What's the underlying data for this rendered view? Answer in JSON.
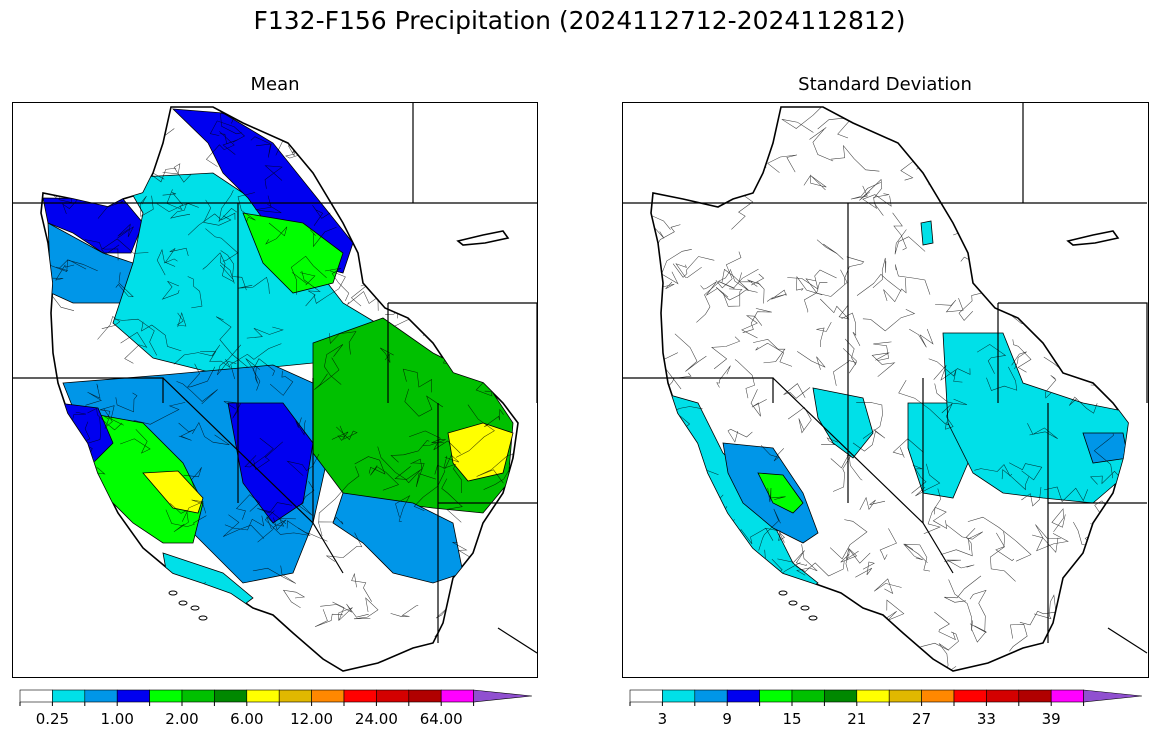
{
  "figure": {
    "title": "F132-F156 Precipitation (2024112712-2024112812)"
  },
  "palette": [
    "#ffffff",
    "#00e0e8",
    "#0096e8",
    "#0000f0",
    "#00ff00",
    "#00c000",
    "#008800",
    "#ffff00",
    "#e0b800",
    "#ff8800",
    "#ff0000",
    "#d40000",
    "#b00000",
    "#ff00ff",
    "#9050d0"
  ],
  "panels": [
    {
      "title": "Mean",
      "colorbar_labels": [
        "0.25",
        "1.00",
        "2.00",
        "6.00",
        "12.00",
        "24.00",
        "64.00"
      ],
      "regions": [
        {
          "name": "olympic-puget",
          "color": "#0000f0"
        },
        {
          "name": "oregon-coast",
          "color": "#0096e8"
        },
        {
          "name": "columbia-basin",
          "color": "#00e0e8"
        },
        {
          "name": "northern-idaho-montana",
          "color": "#0000f0"
        },
        {
          "name": "montana-highlands",
          "color": "#00ff00"
        },
        {
          "name": "great-basin",
          "color": "#0096e8"
        },
        {
          "name": "utah-wasatch",
          "color": "#0000f0"
        },
        {
          "name": "colorado-rockies",
          "color": "#00c000"
        },
        {
          "name": "colorado-front-range",
          "color": "#ffff00"
        },
        {
          "name": "sierra-nevada",
          "color": "#00ff00"
        },
        {
          "name": "sierra-crest",
          "color": "#ffff00"
        },
        {
          "name": "norcal-coast",
          "color": "#0000f0"
        },
        {
          "name": "arizona-highlands",
          "color": "#0096e8"
        },
        {
          "name": "southern-california",
          "color": "#00e0e8"
        }
      ]
    },
    {
      "title": "Standard Deviation",
      "colorbar_labels": [
        "3",
        "9",
        "15",
        "21",
        "27",
        "33",
        "39"
      ],
      "regions": [
        {
          "name": "california-coast",
          "color": "#00e0e8"
        },
        {
          "name": "sierra-nevada",
          "color": "#0096e8"
        },
        {
          "name": "sierra-crest",
          "color": "#00ff00"
        },
        {
          "name": "nevada-basins",
          "color": "#00e0e8"
        },
        {
          "name": "utah-plateau",
          "color": "#00e0e8"
        },
        {
          "name": "colorado-rockies",
          "color": "#00e0e8"
        },
        {
          "name": "colorado-front-range",
          "color": "#0096e8"
        },
        {
          "name": "idaho-spot",
          "color": "#00e0e8"
        }
      ]
    }
  ]
}
